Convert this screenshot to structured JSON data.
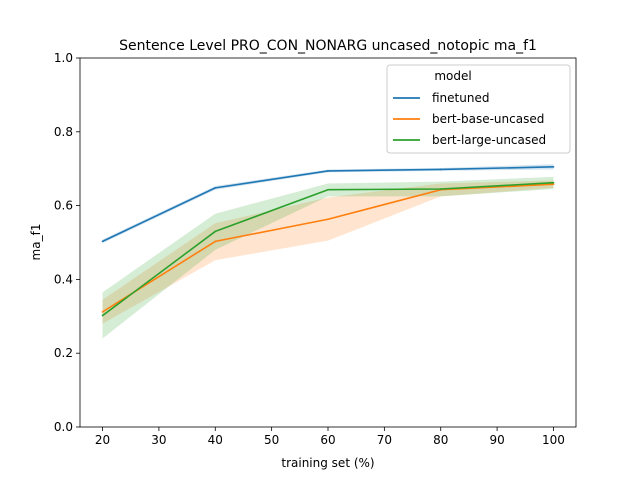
{
  "chart_data": {
    "type": "line",
    "title": "Sentence Level PRO_CON_NONARG uncased_notopic ma_f1",
    "xlabel": "training set (%)",
    "ylabel": "ma_f1",
    "xlim": [
      16,
      104
    ],
    "ylim": [
      0.0,
      1.0
    ],
    "xticks": [
      20,
      30,
      40,
      50,
      60,
      70,
      80,
      90,
      100
    ],
    "yticks": [
      0.0,
      0.2,
      0.4,
      0.6,
      0.8,
      1.0
    ],
    "xtick_labels": [
      "20",
      "30",
      "40",
      "50",
      "60",
      "70",
      "80",
      "90",
      "100"
    ],
    "ytick_labels": [
      "0.0",
      "0.2",
      "0.4",
      "0.6",
      "0.8",
      "1.0"
    ],
    "grid": false,
    "legend": {
      "title": "model",
      "placement": "top-right"
    },
    "x": [
      20,
      40,
      60,
      80,
      100
    ],
    "series": [
      {
        "name": "finetuned",
        "color": "#1f77b4",
        "values": [
          0.503,
          0.648,
          0.694,
          0.698,
          0.705
        ],
        "lower": [
          0.498,
          0.643,
          0.69,
          0.694,
          0.698
        ],
        "upper": [
          0.508,
          0.653,
          0.698,
          0.702,
          0.712
        ]
      },
      {
        "name": "bert-base-uncased",
        "color": "#ff7f0e",
        "values": [
          0.312,
          0.503,
          0.563,
          0.643,
          0.658
        ],
        "lower": [
          0.28,
          0.452,
          0.505,
          0.625,
          0.648
        ],
        "upper": [
          0.345,
          0.552,
          0.622,
          0.66,
          0.668
        ]
      },
      {
        "name": "bert-large-uncased",
        "color": "#2ca02c",
        "values": [
          0.302,
          0.53,
          0.643,
          0.645,
          0.662
        ],
        "lower": [
          0.24,
          0.48,
          0.625,
          0.625,
          0.645
        ],
        "upper": [
          0.365,
          0.578,
          0.66,
          0.665,
          0.678
        ]
      }
    ]
  }
}
